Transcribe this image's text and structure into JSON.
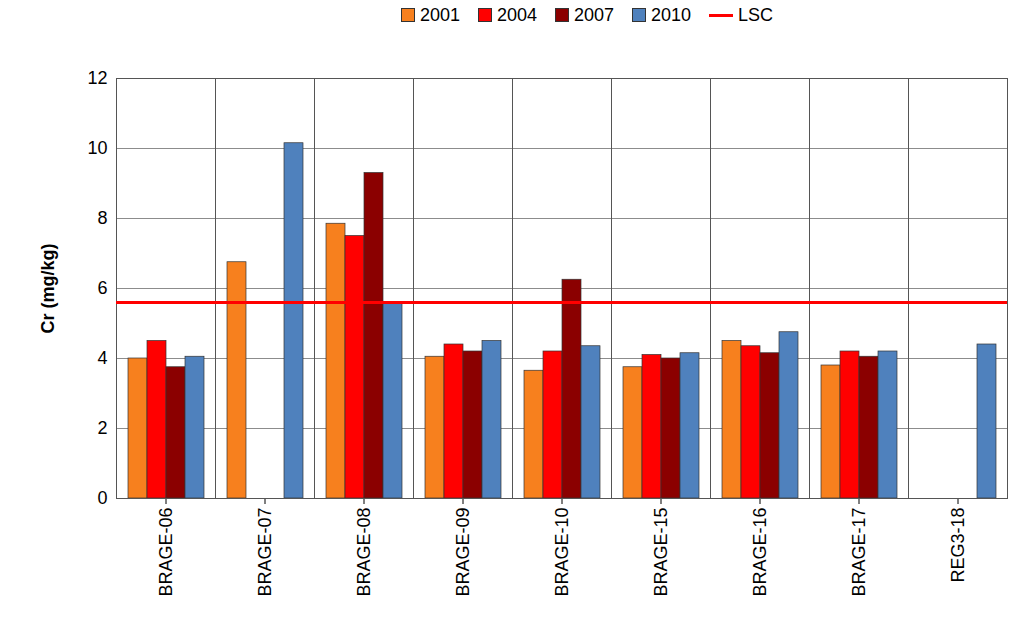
{
  "chart_data": {
    "type": "bar",
    "y_label": "Cr (mg/kg)",
    "categories": [
      "BRAGE-06",
      "BRAGE-07",
      "BRAGE-08",
      "BRAGE-09",
      "BRAGE-10",
      "BRAGE-15",
      "BRAGE-16",
      "BRAGE-17",
      "REG3-18"
    ],
    "series": [
      {
        "name": "2001",
        "color": "#f7801e",
        "values": [
          4.0,
          6.75,
          7.85,
          4.05,
          3.65,
          3.75,
          4.5,
          3.8,
          null
        ]
      },
      {
        "name": "2004",
        "color": "#ff0000",
        "values": [
          4.5,
          null,
          7.5,
          4.4,
          4.2,
          4.1,
          4.35,
          4.2,
          null
        ]
      },
      {
        "name": "2007",
        "color": "#8b0000",
        "values": [
          3.75,
          null,
          9.3,
          4.2,
          6.25,
          4.0,
          4.15,
          4.05,
          null
        ]
      },
      {
        "name": "2010",
        "color": "#4f81bd",
        "values": [
          4.05,
          10.15,
          5.6,
          4.5,
          4.35,
          4.15,
          4.75,
          4.2,
          4.4
        ]
      },
      {
        "name": "LSC",
        "type": "line",
        "color": "#ff0000",
        "values": [
          5.6,
          5.6,
          5.6,
          5.6,
          5.6,
          5.6,
          5.6,
          5.6,
          5.6
        ]
      }
    ],
    "ylim": [
      0,
      12
    ],
    "yticks": [
      0,
      2,
      4,
      6,
      8,
      10,
      12
    ],
    "grid": true,
    "legend": "top"
  }
}
